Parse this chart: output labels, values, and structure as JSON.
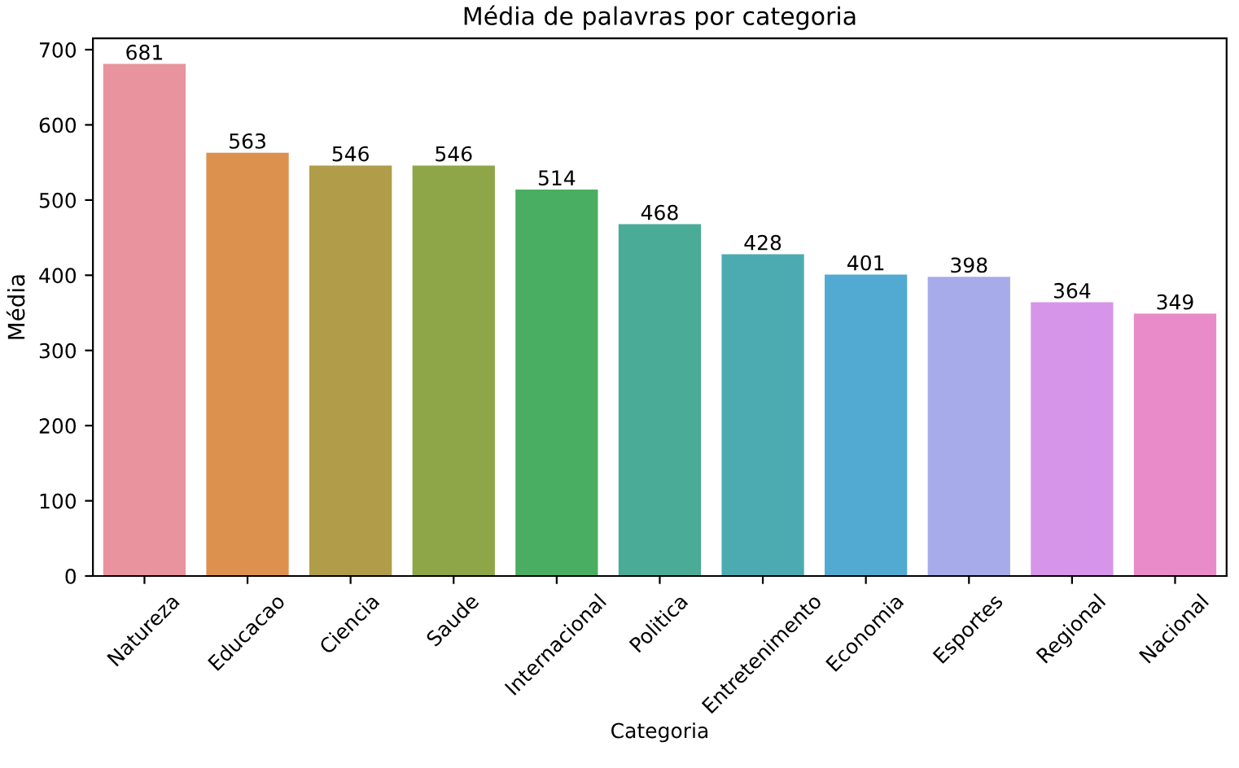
{
  "chart_data": {
    "type": "bar",
    "title": "Média de palavras por categoria",
    "xlabel": "Categoria",
    "ylabel": "Média",
    "categories": [
      "Natureza",
      "Educacao",
      "Ciencia",
      "Saude",
      "Internacional",
      "Politica",
      "Entretenimento",
      "Economia",
      "Esportes",
      "Regional",
      "Nacional"
    ],
    "values": [
      681,
      563,
      546,
      546,
      514,
      468,
      428,
      401,
      398,
      364,
      349
    ],
    "colors": [
      "#e9939f",
      "#dc914f",
      "#b09c49",
      "#8ea648",
      "#4aae62",
      "#4aab96",
      "#4cabb1",
      "#52aad3",
      "#a7abe9",
      "#d695e8",
      "#e88bc8"
    ],
    "ylim": [
      0,
      715
    ],
    "yticks": [
      0,
      100,
      200,
      300,
      400,
      500,
      600,
      700
    ],
    "data_labels": true,
    "grid": false,
    "legend": false
  }
}
